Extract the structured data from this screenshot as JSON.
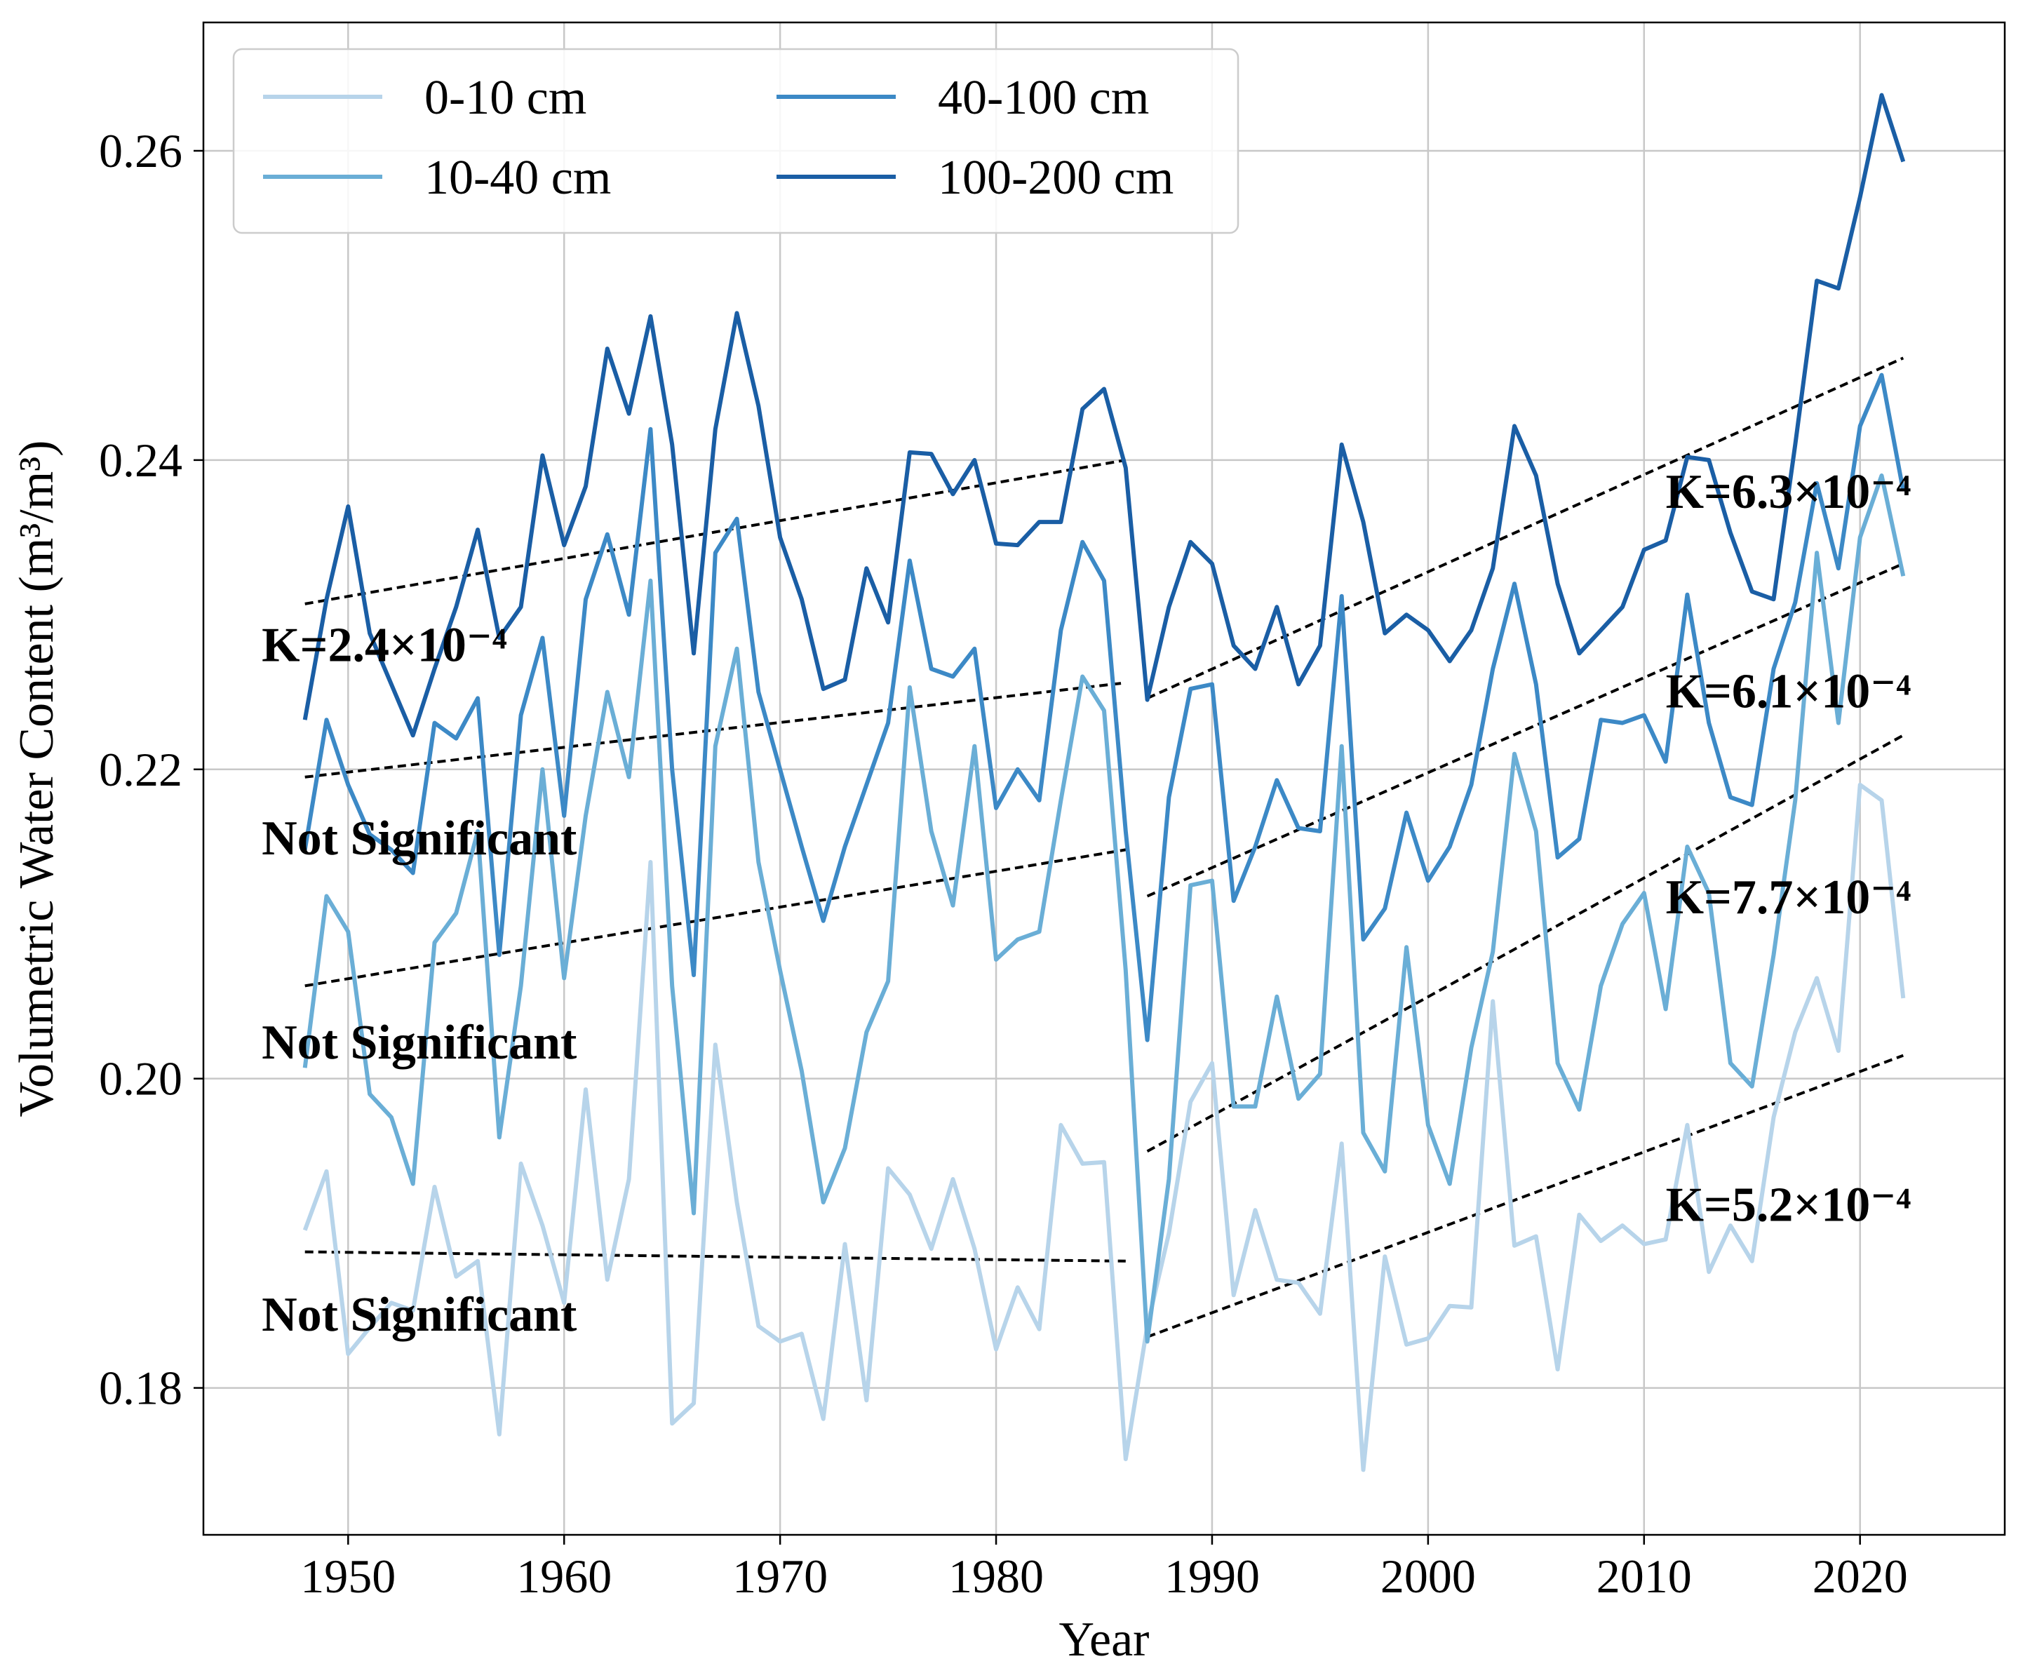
{
  "chart_data": {
    "type": "line",
    "xlabel": "Year",
    "ylabel": "Volumetric Water Content (m³/m³)",
    "xlim": [
      1943.3,
      2026.7
    ],
    "ylim": [
      0.1705,
      0.2683
    ],
    "x_ticks": [
      1950,
      1960,
      1970,
      1980,
      1990,
      2000,
      2010,
      2020
    ],
    "y_ticks": [
      0.18,
      0.2,
      0.22,
      0.24,
      0.26
    ],
    "y_tick_labels": [
      "0.18",
      "0.20",
      "0.22",
      "0.24",
      "0.26"
    ],
    "grid": true,
    "legend": {
      "position": "top-left",
      "columns": 2
    },
    "x": [
      1948,
      1949,
      1950,
      1951,
      1952,
      1953,
      1954,
      1955,
      1956,
      1957,
      1958,
      1959,
      1960,
      1961,
      1962,
      1963,
      1964,
      1965,
      1966,
      1967,
      1968,
      1969,
      1970,
      1971,
      1972,
      1973,
      1974,
      1975,
      1976,
      1977,
      1978,
      1979,
      1980,
      1981,
      1982,
      1983,
      1984,
      1985,
      1986,
      1987,
      1988,
      1989,
      1990,
      1991,
      1992,
      1993,
      1994,
      1995,
      1996,
      1997,
      1998,
      1999,
      2000,
      2001,
      2002,
      2003,
      2004,
      2005,
      2006,
      2007,
      2008,
      2009,
      2010,
      2011,
      2012,
      2013,
      2014,
      2015,
      2016,
      2017,
      2018,
      2019,
      2020,
      2021,
      2022
    ],
    "series": [
      {
        "name": "0-10 cm",
        "color": "#b7d4ea",
        "values": [
          0.1902,
          0.194,
          0.1822,
          0.1839,
          0.1855,
          0.185,
          0.193,
          0.1872,
          0.1882,
          0.177,
          0.1945,
          0.1905,
          0.1855,
          0.1993,
          0.187,
          0.1935,
          0.214,
          0.1777,
          0.179,
          0.2022,
          0.192,
          0.184,
          0.183,
          0.1835,
          0.178,
          0.1893,
          0.1792,
          0.1942,
          0.1925,
          0.189,
          0.1935,
          0.189,
          0.1825,
          0.1865,
          0.1838,
          0.197,
          0.1945,
          0.1946,
          0.1754,
          0.184,
          0.19,
          0.1985,
          0.201,
          0.186,
          0.1915,
          0.187,
          0.1868,
          0.1848,
          0.1958,
          0.1747,
          0.1885,
          0.1828,
          0.1832,
          0.1853,
          0.1852,
          0.205,
          0.1892,
          0.1898,
          0.1812,
          0.1912,
          0.1895,
          0.1905,
          0.1893,
          0.1896,
          0.197,
          0.1875,
          0.1905,
          0.1882,
          0.1975,
          0.203,
          0.2065,
          0.2018,
          0.219,
          0.218,
          0.2052
        ]
      },
      {
        "name": "10-40 cm",
        "color": "#6aaed6",
        "values": [
          0.2007,
          0.2118,
          0.2095,
          0.199,
          0.1975,
          0.1932,
          0.2088,
          0.2107,
          0.216,
          0.1962,
          0.206,
          0.22,
          0.2065,
          0.217,
          0.225,
          0.2195,
          0.2322,
          0.206,
          0.1913,
          0.2215,
          0.2278,
          0.214,
          0.207,
          0.2005,
          0.192,
          0.1955,
          0.203,
          0.2063,
          0.2253,
          0.216,
          0.2112,
          0.2215,
          0.2077,
          0.209,
          0.2095,
          0.218,
          0.226,
          0.2238,
          0.207,
          0.183,
          0.1935,
          0.2125,
          0.2128,
          0.1982,
          0.1982,
          0.2053,
          0.1987,
          0.2003,
          0.2215,
          0.1965,
          0.194,
          0.2085,
          0.197,
          0.1932,
          0.202,
          0.2082,
          0.221,
          0.216,
          0.201,
          0.198,
          0.206,
          0.21,
          0.212,
          0.2045,
          0.215,
          0.212,
          0.201,
          0.1995,
          0.208,
          0.218,
          0.234,
          0.223,
          0.235,
          0.239,
          0.2325
        ]
      },
      {
        "name": "40-100 cm",
        "color": "#3c89c6",
        "values": [
          0.2148,
          0.2232,
          0.219,
          0.2158,
          0.2148,
          0.2133,
          0.223,
          0.222,
          0.2246,
          0.208,
          0.2235,
          0.2285,
          0.217,
          0.231,
          0.2352,
          0.23,
          0.242,
          0.22,
          0.2067,
          0.234,
          0.2362,
          0.225,
          0.22,
          0.215,
          0.2102,
          0.215,
          0.219,
          0.223,
          0.2335,
          0.2265,
          0.226,
          0.2278,
          0.2175,
          0.22,
          0.218,
          0.229,
          0.2347,
          0.2322,
          0.216,
          0.2025,
          0.2182,
          0.2252,
          0.2255,
          0.2115,
          0.215,
          0.2193,
          0.2162,
          0.216,
          0.2312,
          0.209,
          0.211,
          0.2172,
          0.2128,
          0.215,
          0.219,
          0.2265,
          0.232,
          0.2255,
          0.2143,
          0.2155,
          0.2232,
          0.223,
          0.2235,
          0.2205,
          0.2313,
          0.223,
          0.2182,
          0.2177,
          0.2265,
          0.2308,
          0.2385,
          0.233,
          0.2422,
          0.2455,
          0.238
        ]
      },
      {
        "name": "100-200 cm",
        "color": "#1a5ea5",
        "values": [
          0.2232,
          0.231,
          0.237,
          0.2288,
          0.2255,
          0.2222,
          0.2265,
          0.2305,
          0.2355,
          0.2285,
          0.2305,
          0.2403,
          0.2345,
          0.2383,
          0.2472,
          0.243,
          0.2493,
          0.241,
          0.2275,
          0.242,
          0.2495,
          0.2435,
          0.235,
          0.231,
          0.2252,
          0.2258,
          0.233,
          0.2295,
          0.2405,
          0.2404,
          0.2378,
          0.24,
          0.2346,
          0.2345,
          0.236,
          0.236,
          0.2433,
          0.2446,
          0.2395,
          0.2245,
          0.2305,
          0.2347,
          0.2333,
          0.228,
          0.2265,
          0.2305,
          0.2255,
          0.228,
          0.241,
          0.236,
          0.2288,
          0.23,
          0.229,
          0.227,
          0.229,
          0.233,
          0.2422,
          0.239,
          0.232,
          0.2275,
          0.229,
          0.2305,
          0.2342,
          0.2348,
          0.2402,
          0.24,
          0.2353,
          0.2315,
          0.231,
          0.241,
          0.2516,
          0.2511,
          0.257,
          0.2636,
          0.2593
        ]
      }
    ],
    "trend_lines": [
      {
        "x": [
          1948,
          1986
        ],
        "y": [
          0.1888,
          0.1882
        ]
      },
      {
        "x": [
          1948,
          1986
        ],
        "y": [
          0.206,
          0.2148
        ]
      },
      {
        "x": [
          1948,
          1986
        ],
        "y": [
          0.2195,
          0.2256
        ]
      },
      {
        "x": [
          1948,
          1986
        ],
        "y": [
          0.2307,
          0.24
        ]
      },
      {
        "x": [
          1987,
          2022
        ],
        "y": [
          0.1833,
          0.2015
        ]
      },
      {
        "x": [
          1987,
          2022
        ],
        "y": [
          0.1953,
          0.2222
        ]
      },
      {
        "x": [
          1987,
          2022
        ],
        "y": [
          0.2118,
          0.2333
        ]
      },
      {
        "x": [
          1987,
          2022
        ],
        "y": [
          0.2246,
          0.2466
        ]
      }
    ],
    "annotations": [
      {
        "text": "K=2.4×10⁻⁴",
        "x": 1946.0,
        "y": 0.227
      },
      {
        "text": "Not Significant",
        "x": 1946.0,
        "y": 0.2145
      },
      {
        "text": "Not Significant",
        "x": 1946.0,
        "y": 0.2013
      },
      {
        "text": "Not Significant",
        "x": 1946.0,
        "y": 0.1837
      },
      {
        "text": "K=6.3×10⁻⁴",
        "x": 2011.0,
        "y": 0.2369
      },
      {
        "text": "K=6.1×10⁻⁴",
        "x": 2011.0,
        "y": 0.224
      },
      {
        "text": "K=7.7×10⁻⁴",
        "x": 2011.0,
        "y": 0.2107
      },
      {
        "text": "K=5.2×10⁻⁴",
        "x": 2011.0,
        "y": 0.1908
      }
    ]
  }
}
